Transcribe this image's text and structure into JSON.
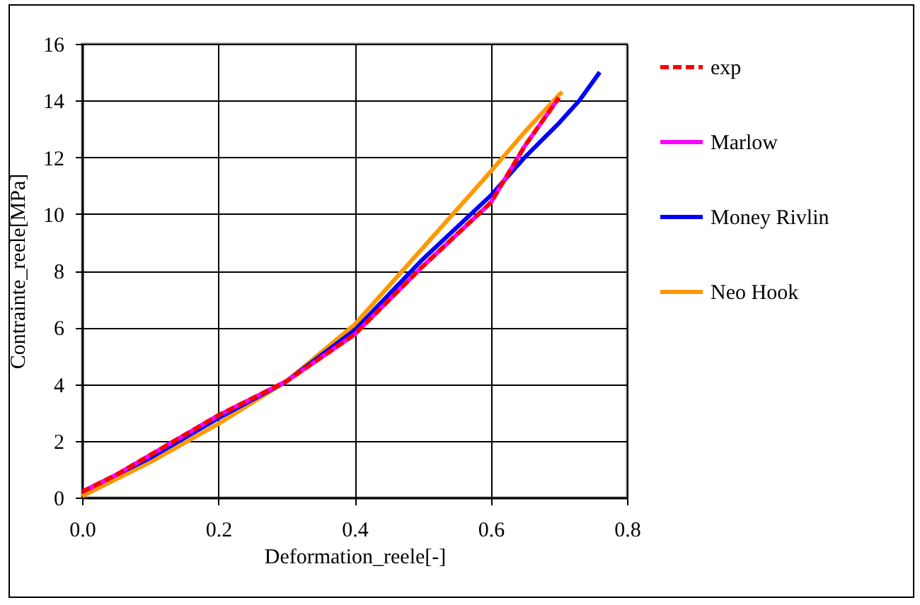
{
  "chart_data": {
    "type": "line",
    "xlabel": "Deformation_reele[-]",
    "ylabel": "Contrainte_reele[MPa]",
    "xlim": [
      0,
      0.8
    ],
    "xticks": [
      {
        "value": 0,
        "label": "0.0"
      },
      0.2,
      0.4,
      0.6,
      0.8
    ],
    "ylim": [
      0,
      16
    ],
    "yticks": [
      0,
      2,
      4,
      6,
      8,
      10,
      12,
      14,
      16
    ],
    "grid": true,
    "legend": "right",
    "marker": "none",
    "series": [
      {
        "name": "exp",
        "color": "#ff0000",
        "line_style": "dashed",
        "x": [
          0,
          0.05,
          0.1,
          0.2,
          0.3,
          0.4,
          0.5,
          0.6,
          0.65,
          0.7
        ],
        "values": [
          0.2,
          0.8,
          1.5,
          2.9,
          4.1,
          5.75,
          8.15,
          10.4,
          12.4,
          14.1
        ]
      },
      {
        "name": "Marlow",
        "color": "#ff00ff",
        "line_style": "solid",
        "x": [
          0,
          0.05,
          0.1,
          0.2,
          0.3,
          0.4,
          0.5,
          0.6,
          0.65,
          0.7
        ],
        "values": [
          0.2,
          0.8,
          1.5,
          2.9,
          4.1,
          5.75,
          8.15,
          10.4,
          12.4,
          14.1
        ]
      },
      {
        "name": "Money Rivlin",
        "color": "#0000ff",
        "line_style": "solid",
        "x": [
          0,
          0.1,
          0.2,
          0.3,
          0.4,
          0.5,
          0.6,
          0.65,
          0.7,
          0.73,
          0.76
        ],
        "values": [
          0.2,
          1.4,
          2.8,
          4.1,
          5.9,
          8.4,
          10.65,
          12.0,
          13.2,
          14.0,
          15.0
        ]
      },
      {
        "name": "Neo Hook",
        "color": "#ff9900",
        "line_style": "solid",
        "x": [
          0,
          0.1,
          0.2,
          0.3,
          0.4,
          0.5,
          0.6,
          0.65,
          0.7,
          0.705
        ],
        "values": [
          0.05,
          1.25,
          2.6,
          4.1,
          6.1,
          8.8,
          11.5,
          12.9,
          14.2,
          14.3
        ]
      }
    ]
  }
}
